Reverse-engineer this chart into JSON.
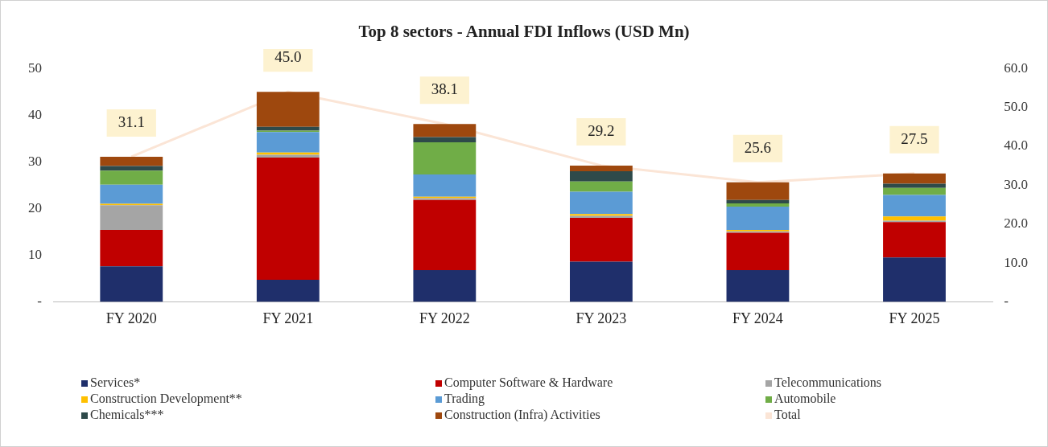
{
  "chart_data": {
    "type": "bar",
    "title": "Top 8 sectors - Annual FDI Inflows (USD Mn)",
    "categories": [
      "FY 2020",
      "FY 2021",
      "FY 2022",
      "FY 2023",
      "FY 2024",
      "FY 2025"
    ],
    "stacked": true,
    "series": [
      {
        "name": "Services*",
        "color": "#1f2f6b",
        "values": [
          7.6,
          4.7,
          6.8,
          8.6,
          6.8,
          9.5
        ]
      },
      {
        "name": "Computer Software & Hardware",
        "color": "#c00000",
        "values": [
          7.8,
          26.2,
          15.0,
          9.4,
          8.0,
          7.6
        ]
      },
      {
        "name": "Telecommunications",
        "color": "#a5a5a5",
        "values": [
          5.3,
          0.6,
          0.4,
          0.4,
          0.3,
          0.3
        ]
      },
      {
        "name": "Construction Development**",
        "color": "#ffc000",
        "values": [
          0.3,
          0.5,
          0.3,
          0.4,
          0.3,
          0.9
        ]
      },
      {
        "name": "Trading",
        "color": "#5b9bd5",
        "values": [
          4.1,
          4.4,
          4.8,
          4.8,
          5.0,
          4.6
        ]
      },
      {
        "name": "Automobile",
        "color": "#70ad47",
        "values": [
          3.0,
          0.3,
          6.9,
          2.2,
          0.7,
          1.5
        ]
      },
      {
        "name": "Chemicals***",
        "color": "#2e4a4a",
        "values": [
          1.0,
          0.8,
          1.1,
          2.2,
          0.7,
          0.9
        ]
      },
      {
        "name": "Construction (Infra) Activities",
        "color": "#9e480e",
        "values": [
          2.0,
          7.5,
          2.8,
          1.2,
          3.8,
          2.2
        ]
      },
      {
        "name": "Total",
        "type": "line",
        "color": "#fbe5d6",
        "values": [
          31.1,
          45.0,
          38.1,
          29.2,
          25.6,
          27.5
        ]
      }
    ],
    "totals": [
      "31.1",
      "45.0",
      "38.1",
      "29.2",
      "25.6",
      "27.5"
    ],
    "marker": "none",
    "ylim": [
      0,
      50
    ],
    "yticks": [
      {
        "value": 0,
        "label": "-"
      },
      10,
      20,
      30,
      40,
      50
    ],
    "y2lim": [
      0,
      60
    ],
    "y2ticks": [
      {
        "value": 0,
        "label": "-"
      },
      {
        "value": 10,
        "label": "10.0"
      },
      {
        "value": 20,
        "label": "20.0"
      },
      {
        "value": 30,
        "label": "30.0"
      },
      {
        "value": 40,
        "label": "40.0"
      },
      {
        "value": 50,
        "label": "50.0"
      },
      {
        "value": 60,
        "label": "60.0"
      }
    ],
    "grid": false,
    "legend": "bottom"
  }
}
